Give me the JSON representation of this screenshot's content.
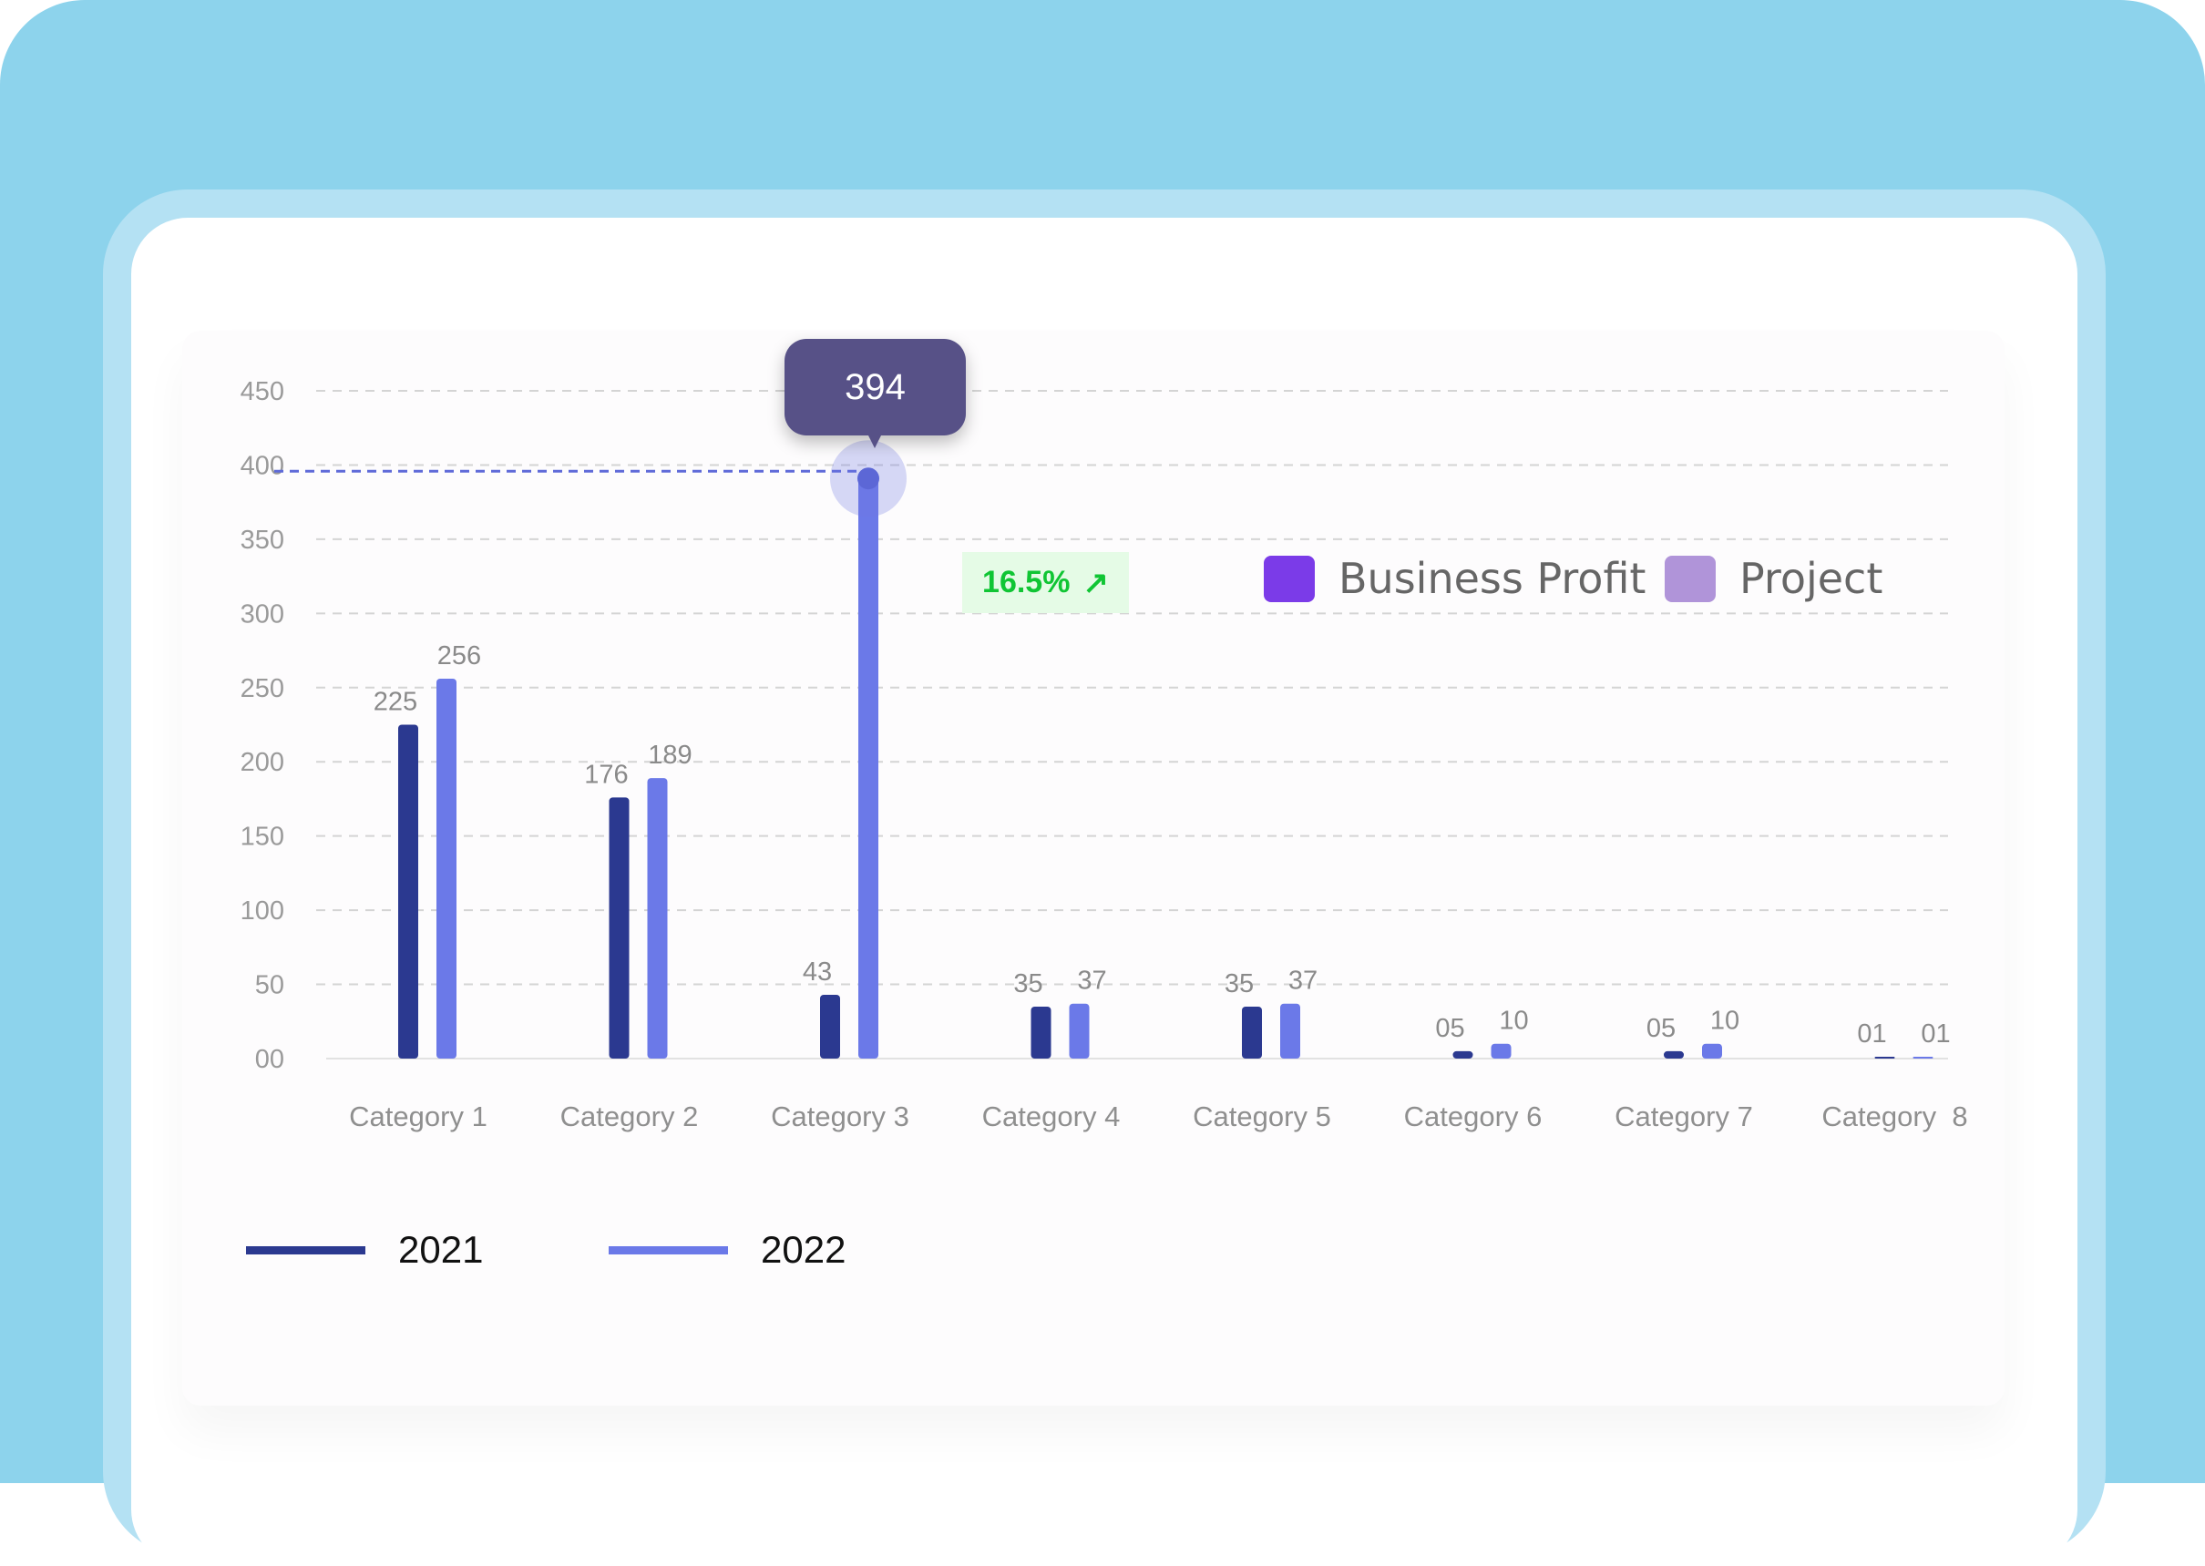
{
  "chart_data": {
    "type": "bar",
    "categories": [
      "Category 1",
      "Category 2",
      "Category 3",
      "Category 4",
      "Category 5",
      "Category 6",
      "Category 7",
      "Category  8"
    ],
    "series": [
      {
        "name": "2021",
        "color": "#2b3990",
        "values": [
          225,
          176,
          43,
          35,
          35,
          5,
          5,
          1
        ],
        "labels": [
          "225",
          "176",
          "43",
          "35",
          "35",
          "05",
          "05",
          "01"
        ]
      },
      {
        "name": "2022",
        "color": "#6b79e8",
        "values": [
          256,
          189,
          394,
          37,
          37,
          10,
          10,
          1
        ],
        "labels": [
          "256",
          "189",
          "",
          "37",
          "37",
          "10",
          "10",
          "01"
        ]
      }
    ],
    "yticks": [
      "00",
      "50",
      "100",
      "150",
      "200",
      "250",
      "300",
      "350",
      "400",
      "450"
    ],
    "ytick_values": [
      0,
      50,
      100,
      150,
      200,
      250,
      300,
      350,
      400,
      450
    ],
    "ylim": [
      0,
      450
    ],
    "grid": true,
    "tooltip": {
      "value": "394",
      "category": "Category 3",
      "series": "2022"
    },
    "badge": {
      "text": "16.5%",
      "icon": "arrow-up-right-icon",
      "color": "#10c534"
    },
    "legend_top": [
      {
        "label": "Business Profit",
        "color": "#7b3be8"
      },
      {
        "label": "Project",
        "color": "#b094d9"
      }
    ],
    "legend_bottom": [
      {
        "label": "2021",
        "color": "#2b3990"
      },
      {
        "label": "2022",
        "color": "#6b79e8"
      }
    ]
  }
}
